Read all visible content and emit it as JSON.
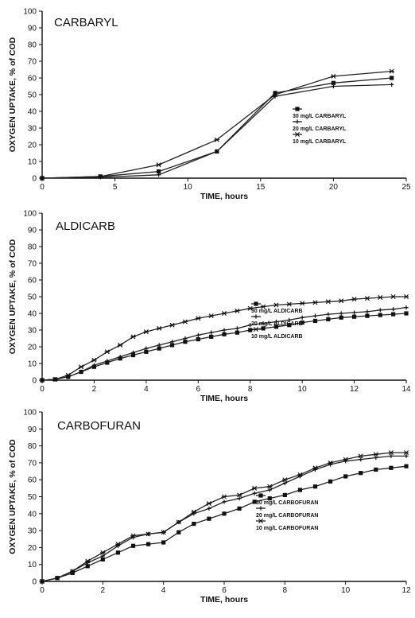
{
  "chart_data": [
    {
      "type": "line",
      "title": "CARBARYL",
      "xlabel": "TIME, hours",
      "ylabel": "OXYGEN UPTAKE, % of COD",
      "xlim": [
        0,
        25
      ],
      "ylim": [
        0,
        100
      ],
      "xticks": [
        "0",
        "5",
        "10",
        "15",
        "20",
        "25"
      ],
      "yticks": [
        "0",
        "10",
        "20",
        "30",
        "40",
        "50",
        "60",
        "70",
        "80",
        "90",
        "100"
      ],
      "grid": false,
      "legend_position": "right",
      "series": [
        {
          "name": "30 mg/L CARBARYL",
          "marker": "square",
          "x": [
            0,
            4,
            8,
            12,
            16,
            20,
            24
          ],
          "y": [
            0,
            1,
            4,
            16,
            51,
            57,
            60
          ]
        },
        {
          "name": "20 mg/L CARBARYL",
          "marker": "plus",
          "x": [
            0,
            4,
            8,
            12,
            16,
            20,
            24
          ],
          "y": [
            0,
            0.5,
            2,
            16,
            49,
            55,
            56
          ]
        },
        {
          "name": "10 mg/L CARBARYL",
          "marker": "star",
          "x": [
            0,
            4,
            8,
            12,
            16,
            20,
            24
          ],
          "y": [
            0,
            1,
            8,
            23,
            50,
            61,
            64
          ]
        }
      ]
    },
    {
      "type": "line",
      "title": "ALDICARB",
      "xlabel": "TIME, hours",
      "ylabel": "OXYGEN UPTAKE, % of COD",
      "xlim": [
        0,
        14
      ],
      "ylim": [
        0,
        100
      ],
      "xticks": [
        "0",
        "2",
        "4",
        "6",
        "8",
        "10",
        "12",
        "14"
      ],
      "yticks": [
        "0",
        "10",
        "20",
        "30",
        "40",
        "50",
        "60",
        "70",
        "80",
        "90",
        "100"
      ],
      "grid": false,
      "legend_position": "right",
      "series": [
        {
          "name": "30 mg/L ALDICARB",
          "marker": "square",
          "x": [
            0,
            0.5,
            1,
            1.5,
            2,
            2.5,
            3,
            3.5,
            4,
            4.5,
            5,
            5.5,
            6,
            6.5,
            7,
            7.5,
            8,
            8.5,
            9,
            9.5,
            10,
            10.5,
            11,
            11.5,
            12,
            12.5,
            13,
            13.5,
            14
          ],
          "y": [
            0,
            0.5,
            2,
            5,
            8,
            10.5,
            13,
            15,
            17,
            19,
            21,
            23,
            24.5,
            26,
            27.5,
            28.5,
            30,
            31,
            32,
            33,
            34.5,
            35.5,
            36.5,
            37.5,
            38,
            38.5,
            39,
            39.5,
            40
          ]
        },
        {
          "name": "20 mg/L ALDICARB",
          "marker": "plus",
          "x": [
            0,
            0.5,
            1,
            1.5,
            2,
            2.5,
            3,
            3.5,
            4,
            4.5,
            5,
            5.5,
            6,
            6.5,
            7,
            7.5,
            8,
            8.5,
            9,
            9.5,
            10,
            10.5,
            11,
            11.5,
            12,
            12.5,
            13,
            13.5,
            14
          ],
          "y": [
            0,
            0.5,
            2,
            5,
            9,
            11.5,
            14,
            16.5,
            19,
            21,
            23,
            25,
            27,
            28.5,
            30,
            31,
            33,
            34,
            35,
            36,
            37.5,
            38.5,
            39.5,
            40,
            40.5,
            41,
            42,
            42.5,
            43.5
          ]
        },
        {
          "name": "10 mg/L ALDICARB",
          "marker": "star",
          "x": [
            0,
            0.5,
            1,
            1.5,
            2,
            2.5,
            3,
            3.5,
            4,
            4.5,
            5,
            5.5,
            6,
            6.5,
            7,
            7.5,
            8,
            8.5,
            9,
            9.5,
            10,
            10.5,
            11,
            11.5,
            12,
            12.5,
            13,
            13.5,
            14
          ],
          "y": [
            0,
            0.5,
            3,
            8,
            12,
            17,
            21,
            26,
            29,
            31,
            33,
            35,
            37,
            38.5,
            40,
            41.5,
            43,
            44,
            45,
            45.5,
            46,
            46.5,
            47,
            47.5,
            48.5,
            49,
            49.5,
            50,
            50
          ]
        }
      ]
    },
    {
      "type": "line",
      "title": "CARBOFURAN",
      "xlabel": "TIME, hours",
      "ylabel": "OXYGEN UPTAKE, % of COD",
      "xlim": [
        0,
        12
      ],
      "ylim": [
        0,
        100
      ],
      "xticks": [
        "0",
        "2",
        "4",
        "6",
        "8",
        "10",
        "12"
      ],
      "yticks": [
        "0",
        "10",
        "20",
        "30",
        "40",
        "50",
        "60",
        "70",
        "80",
        "90",
        "100"
      ],
      "grid": false,
      "legend_position": "right",
      "series": [
        {
          "name": "30 mg/L CARBOFURAN",
          "marker": "square",
          "x": [
            0,
            0.5,
            1,
            1.5,
            2,
            2.5,
            3,
            3.5,
            4,
            4.5,
            5,
            5.5,
            6,
            6.5,
            7,
            7.5,
            8,
            8.5,
            9,
            9.5,
            10,
            10.5,
            11,
            11.5,
            12
          ],
          "y": [
            0,
            2,
            5,
            9,
            13,
            17,
            21,
            22,
            23,
            29,
            34,
            37,
            40,
            43,
            47,
            49,
            51,
            54,
            56,
            59,
            62,
            64,
            66,
            67,
            68
          ]
        },
        {
          "name": "20 mg/L CARBOFURAN",
          "marker": "plus",
          "x": [
            0,
            0.5,
            1,
            1.5,
            2,
            2.5,
            3,
            3.5,
            4,
            4.5,
            5,
            5.5,
            6,
            6.5,
            7,
            7.5,
            8,
            8.5,
            9,
            9.5,
            10,
            10.5,
            11,
            11.5,
            12
          ],
          "y": [
            0,
            2,
            6,
            11,
            15,
            21,
            26,
            28,
            29,
            35,
            40,
            43,
            47,
            49,
            52,
            54,
            58,
            62,
            66,
            69,
            71,
            72,
            73,
            74,
            74
          ]
        },
        {
          "name": "10 mg/L CARBOFURAN",
          "marker": "star",
          "x": [
            0,
            0.5,
            1,
            1.5,
            2,
            2.5,
            3,
            3.5,
            4,
            4.5,
            5,
            5.5,
            6,
            6.5,
            7,
            7.5,
            8,
            8.5,
            9,
            9.5,
            10,
            10.5,
            11,
            11.5,
            12
          ],
          "y": [
            0,
            2,
            6,
            12,
            17,
            22,
            27,
            28,
            29,
            35,
            41,
            46,
            50,
            51,
            55,
            56,
            60,
            63,
            67,
            70,
            72,
            74,
            75,
            76,
            76
          ]
        }
      ]
    }
  ]
}
